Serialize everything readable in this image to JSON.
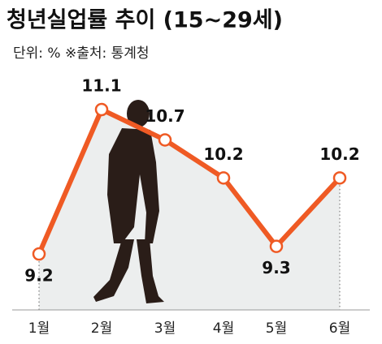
{
  "chart_data": {
    "type": "line",
    "title": "청년실업률 추이 (15~29세)",
    "subtitle": "단위: % ※출처: 통계청",
    "categories": [
      "1월",
      "2월",
      "3월",
      "4월",
      "5월",
      "6월"
    ],
    "series": [
      {
        "color": "#ef5a24",
        "values": [
          9.2,
          11.1,
          10.7,
          10.2,
          9.3,
          10.2
        ]
      }
    ]
  }
}
